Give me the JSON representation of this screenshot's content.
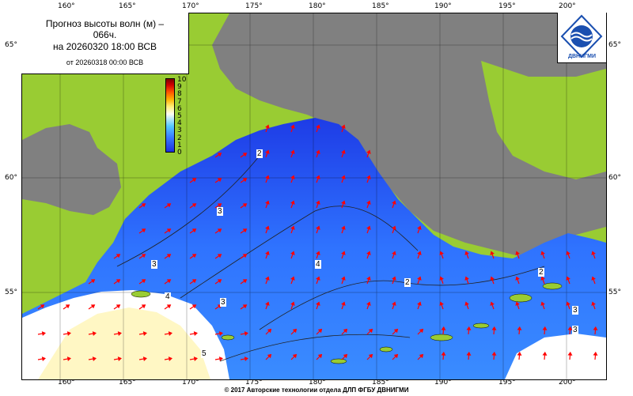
{
  "title": {
    "line1": "Прогноз высоты волн (м) –",
    "line1b": "066ч.",
    "line2": "на 20260320 18:00 ВСВ",
    "line3": "от 20260318 00:00 ВСВ"
  },
  "logo": {
    "text": "ДВНИГМИ",
    "icon": "wave-globe-logo"
  },
  "axes": {
    "lon_ticks": [
      "160°",
      "165°",
      "170°",
      "175°",
      "180°",
      "185°",
      "190°",
      "195°",
      "200°"
    ],
    "lat_ticks": [
      "65°",
      "60°",
      "55°"
    ]
  },
  "colorbar": {
    "labels": [
      "10",
      "9",
      "8",
      "7",
      "6",
      "5",
      "4",
      "3",
      "2",
      "1",
      "0"
    ]
  },
  "contour_labels": [
    "2",
    "3",
    "3",
    "4",
    "3",
    "3",
    "2",
    "2",
    "4",
    "5",
    "3"
  ],
  "colors": {
    "land": "#99cc33",
    "ice": "#808080",
    "waves_low": "#1d2fe0",
    "waves_mid": "#55c8ff",
    "waves_high": "#fff07a",
    "arrows": "#ff0000"
  },
  "footer": "© 2017 Авторские технологии отдела ДЛП ФГБУ ДВНИГМИ"
}
